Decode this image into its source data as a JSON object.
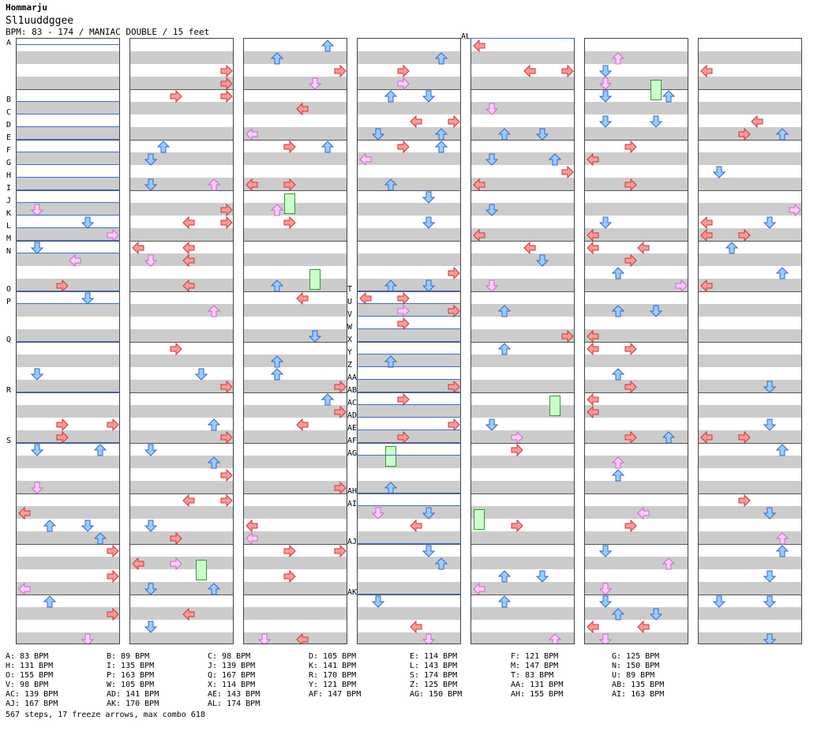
{
  "song": {
    "artist": "Hommarju",
    "title": "Sl1uuddggee",
    "info": "BPM: 83 - 174 / MANIAC DOUBLE / 15 feet"
  },
  "colors": {
    "left_right": "#ff9999",
    "up_down": "#99ccff",
    "sixteenth": "#ffccff",
    "freeze": "#ccffcc",
    "bpm_line": "#3a6fcf",
    "stripe": "#cccccc"
  },
  "arrow_symbols": {
    "left": "←",
    "down": "↓",
    "up": "↑",
    "right": "→"
  },
  "bpm_markers_col1": [
    "A",
    "B",
    "C",
    "D",
    "E",
    "F",
    "G",
    "H",
    "I",
    "J",
    "K",
    "L",
    "M",
    "N",
    "O",
    "P",
    "Q",
    "R",
    "S"
  ],
  "bpm_markers_col4": [
    "T",
    "U",
    "V",
    "W",
    "X",
    "Y",
    "Z",
    "AA",
    "AB",
    "AC",
    "AD",
    "AE",
    "AF",
    "AG",
    "AH",
    "AI",
    "AJ",
    "AK"
  ],
  "bpm_markers_col5": [
    "AL"
  ],
  "legend": [
    [
      "A: 83 BPM",
      "B: 89 BPM",
      "C: 98 BPM",
      "D: 105 BPM",
      "E: 114 BPM",
      "F: 121 BPM",
      "G: 125 BPM"
    ],
    [
      "H: 131 BPM",
      "I: 135 BPM",
      "J: 139 BPM",
      "K: 141 BPM",
      "L: 143 BPM",
      "M: 147 BPM",
      "N: 150 BPM"
    ],
    [
      "O: 155 BPM",
      "P: 163 BPM",
      "Q: 167 BPM",
      "R: 170 BPM",
      "S: 174 BPM",
      "T: 83 BPM",
      "U: 89 BPM"
    ],
    [
      "V: 98 BPM",
      "W: 105 BPM",
      "X: 114 BPM",
      "Y: 121 BPM",
      "Z: 125 BPM",
      "AA: 131 BPM",
      "AB: 135 BPM"
    ],
    [
      "AC: 139 BPM",
      "AD: 141 BPM",
      "AE: 143 BPM",
      "AF: 147 BPM",
      "AG: 150 BPM",
      "AH: 155 BPM",
      "AI: 163 BPM"
    ],
    [
      "AJ: 167 BPM",
      "AK: 170 BPM",
      "AL: 174 BPM"
    ]
  ],
  "footer": "567 steps, 17 freeze arrows, max combo 618"
}
